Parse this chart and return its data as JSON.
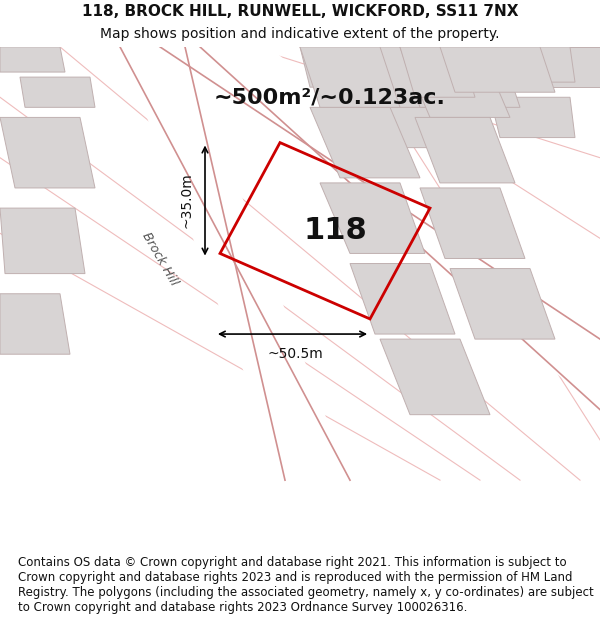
{
  "title_line1": "118, BROCK HILL, RUNWELL, WICKFORD, SS11 7NX",
  "title_line2": "Map shows position and indicative extent of the property.",
  "area_text": "~500m²/~0.123ac.",
  "property_number": "118",
  "dim_vertical": "~35.0m",
  "dim_horizontal": "~50.5m",
  "road_label": "Brock Hill",
  "footer_text": "Contains OS data © Crown copyright and database right 2021. This information is subject to Crown copyright and database rights 2023 and is reproduced with the permission of HM Land Registry. The polygons (including the associated geometry, namely x, y co-ordinates) are subject to Crown copyright and database rights 2023 Ordnance Survey 100026316.",
  "bg_color": "#f0eeee",
  "map_bg": "#f5f3f3",
  "road_color": "#ffffff",
  "building_color": "#d8d5d5",
  "building_outline": "#c8b8b8",
  "property_outline": "#cc0000",
  "road_line_color": "#e8b0b0",
  "footer_bg": "#ffffff",
  "title_fontsize": 11,
  "subtitle_fontsize": 10,
  "area_fontsize": 16,
  "number_fontsize": 22,
  "dim_fontsize": 10,
  "footer_fontsize": 8.5
}
